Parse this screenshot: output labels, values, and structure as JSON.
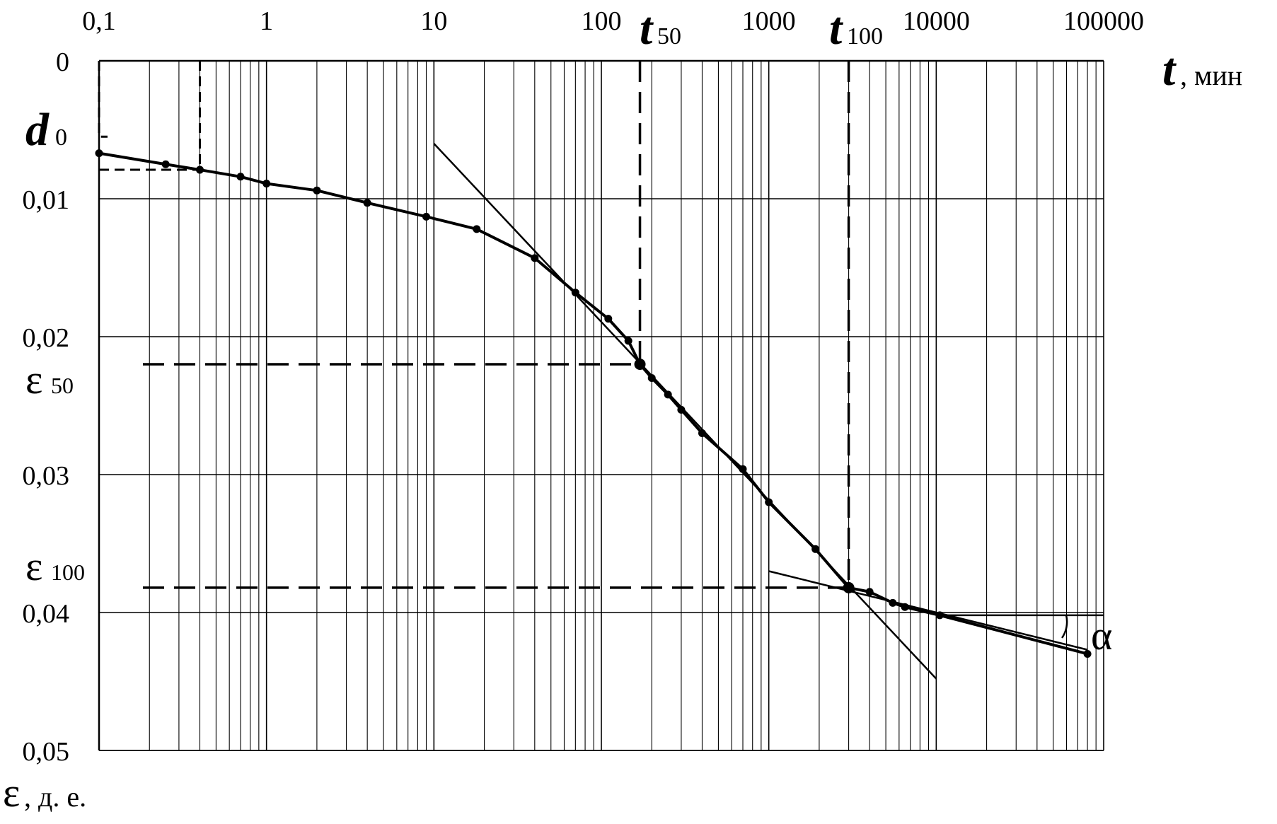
{
  "chart_data": {
    "type": "line",
    "x_scale": "log",
    "x_range": [
      0.1,
      100000
    ],
    "y_range": [
      0,
      0.05
    ],
    "y_inverted": true,
    "grid": true,
    "x_ticks": [
      {
        "value": 0.1,
        "label": "0,1"
      },
      {
        "value": 1,
        "label": "1"
      },
      {
        "value": 10,
        "label": "10"
      },
      {
        "value": 100,
        "label": "100"
      },
      {
        "value": 1000,
        "label": "1000"
      },
      {
        "value": 10000,
        "label": "10000"
      },
      {
        "value": 100000,
        "label": "100000"
      }
    ],
    "y_ticks": [
      {
        "value": 0,
        "label": "0"
      },
      {
        "value": 0.01,
        "label": "0,01"
      },
      {
        "value": 0.02,
        "label": "0,02"
      },
      {
        "value": 0.03,
        "label": "0,03"
      },
      {
        "value": 0.04,
        "label": "0,04"
      },
      {
        "value": 0.05,
        "label": "0,05"
      }
    ],
    "x_axis_label": {
      "symbol": "t",
      "unit": ", мин"
    },
    "y_axis_label": {
      "symbol": "ε",
      "unit": ", д. е."
    },
    "series": [
      {
        "points": [
          [
            0.1,
            0.0067
          ],
          [
            0.25,
            0.0075
          ],
          [
            0.4,
            0.0079
          ],
          [
            0.7,
            0.0084
          ],
          [
            1,
            0.0089
          ],
          [
            2,
            0.0094
          ],
          [
            4,
            0.0103
          ],
          [
            9,
            0.0113
          ],
          [
            18,
            0.0122
          ],
          [
            40,
            0.0143
          ],
          [
            70,
            0.0168
          ],
          [
            110,
            0.0187
          ],
          [
            145,
            0.0203
          ],
          [
            170,
            0.022
          ],
          [
            200,
            0.023
          ],
          [
            250,
            0.0242
          ],
          [
            300,
            0.0253
          ],
          [
            400,
            0.027
          ],
          [
            700,
            0.0296
          ],
          [
            1000,
            0.032
          ],
          [
            1900,
            0.0354
          ],
          [
            3000,
            0.0382
          ],
          [
            4000,
            0.0385
          ],
          [
            5500,
            0.0393
          ],
          [
            6500,
            0.0396
          ],
          [
            10500,
            0.0402
          ],
          [
            80000,
            0.043
          ]
        ]
      }
    ],
    "tangent_lines": [
      {
        "from": [
          10,
          0.006
        ],
        "to": [
          10000,
          0.0448
        ]
      },
      {
        "from": [
          1000,
          0.037
        ],
        "to": [
          80000,
          0.0427
        ]
      }
    ],
    "horizontal_reference": {
      "y": 0.0402,
      "x_from": 10500,
      "x_to": 100000
    },
    "angle_label": "α",
    "markers": [
      {
        "name": "d",
        "sub": "0",
        "x": 0.1,
        "x_top": 0.4,
        "y_top": 0.0055,
        "y": 0.0079
      },
      {
        "name": "t",
        "sub": "50",
        "x": 170
      },
      {
        "name": "t",
        "sub": "100",
        "x": 3000
      },
      {
        "name": "ε",
        "sub": "50",
        "y": 0.022
      },
      {
        "name": "ε",
        "sub": "100",
        "y": 0.0382
      }
    ]
  }
}
